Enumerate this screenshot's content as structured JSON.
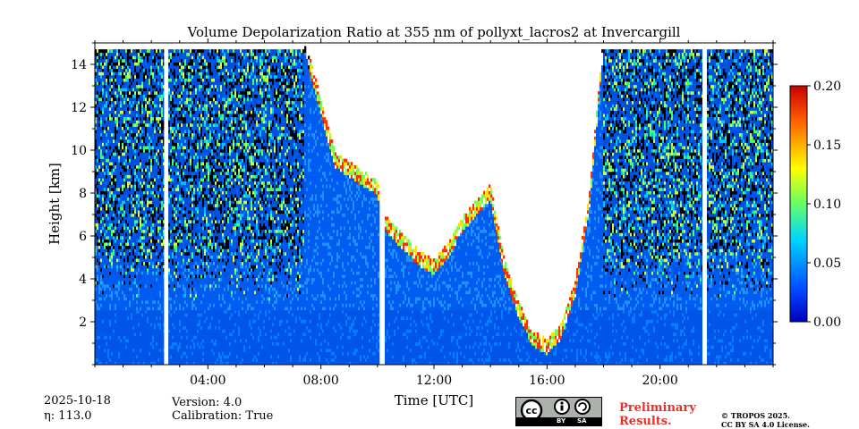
{
  "chart_data": {
    "type": "heatmap",
    "title": "Volume Depolarization Ratio at 355 nm of pollyxt_lacros2 at Invercargill",
    "xlabel": "Time [UTC]",
    "ylabel": "Height [km]",
    "x_range_hours": [
      0,
      24
    ],
    "y_range_km": [
      0,
      15
    ],
    "x_ticks": [
      {
        "value": 4,
        "label": "04:00"
      },
      {
        "value": 8,
        "label": "08:00"
      },
      {
        "value": 12,
        "label": "12:00"
      },
      {
        "value": 16,
        "label": "16:00"
      },
      {
        "value": 20,
        "label": "20:00"
      }
    ],
    "y_ticks": [
      {
        "value": 2,
        "label": "2"
      },
      {
        "value": 4,
        "label": "4"
      },
      {
        "value": 6,
        "label": "6"
      },
      {
        "value": 8,
        "label": "8"
      },
      {
        "value": 10,
        "label": "10"
      },
      {
        "value": 12,
        "label": "12"
      },
      {
        "value": 14,
        "label": "14"
      }
    ],
    "colorbar": {
      "range": [
        0.0,
        0.2
      ],
      "ticks": [
        {
          "value": 0.0,
          "label": "0.00"
        },
        {
          "value": 0.05,
          "label": "0.05"
        },
        {
          "value": 0.1,
          "label": "0.10"
        },
        {
          "value": 0.15,
          "label": "0.15"
        },
        {
          "value": 0.2,
          "label": "0.20"
        }
      ],
      "colormap": "jet"
    },
    "data_gaps_hours": [
      [
        2.45,
        2.6
      ],
      [
        10.1,
        10.25
      ],
      [
        21.5,
        21.65
      ]
    ],
    "cloud_top_profile_km": [
      [
        0,
        15
      ],
      [
        2.4,
        15
      ],
      [
        2.6,
        15
      ],
      [
        7.4,
        15
      ],
      [
        8.5,
        9.5
      ],
      [
        10.0,
        8.2
      ],
      [
        10.3,
        6.5
      ],
      [
        11.5,
        4.9
      ],
      [
        12.0,
        4.5
      ],
      [
        12.5,
        5.3
      ],
      [
        13.0,
        6.5
      ],
      [
        14.0,
        8.0
      ],
      [
        14.5,
        4.5
      ],
      [
        15.0,
        2.5
      ],
      [
        15.5,
        1.2
      ],
      [
        16.0,
        0.8
      ],
      [
        16.5,
        1.5
      ],
      [
        17.0,
        3.5
      ],
      [
        17.5,
        7.5
      ],
      [
        18.0,
        15
      ],
      [
        24,
        15
      ]
    ]
  },
  "footer": {
    "date": "2025-10-18",
    "eta": "η: 113.0",
    "version": "Version: 4.0",
    "calibration": "Calibration: True",
    "preliminary_line1": "Preliminary",
    "preliminary_line2": "Results.",
    "copyright_line1": "© TROPOS 2025.",
    "copyright_line2": "CC BY SA 4.0 License.",
    "license_by": "BY",
    "license_sa": "SA"
  }
}
